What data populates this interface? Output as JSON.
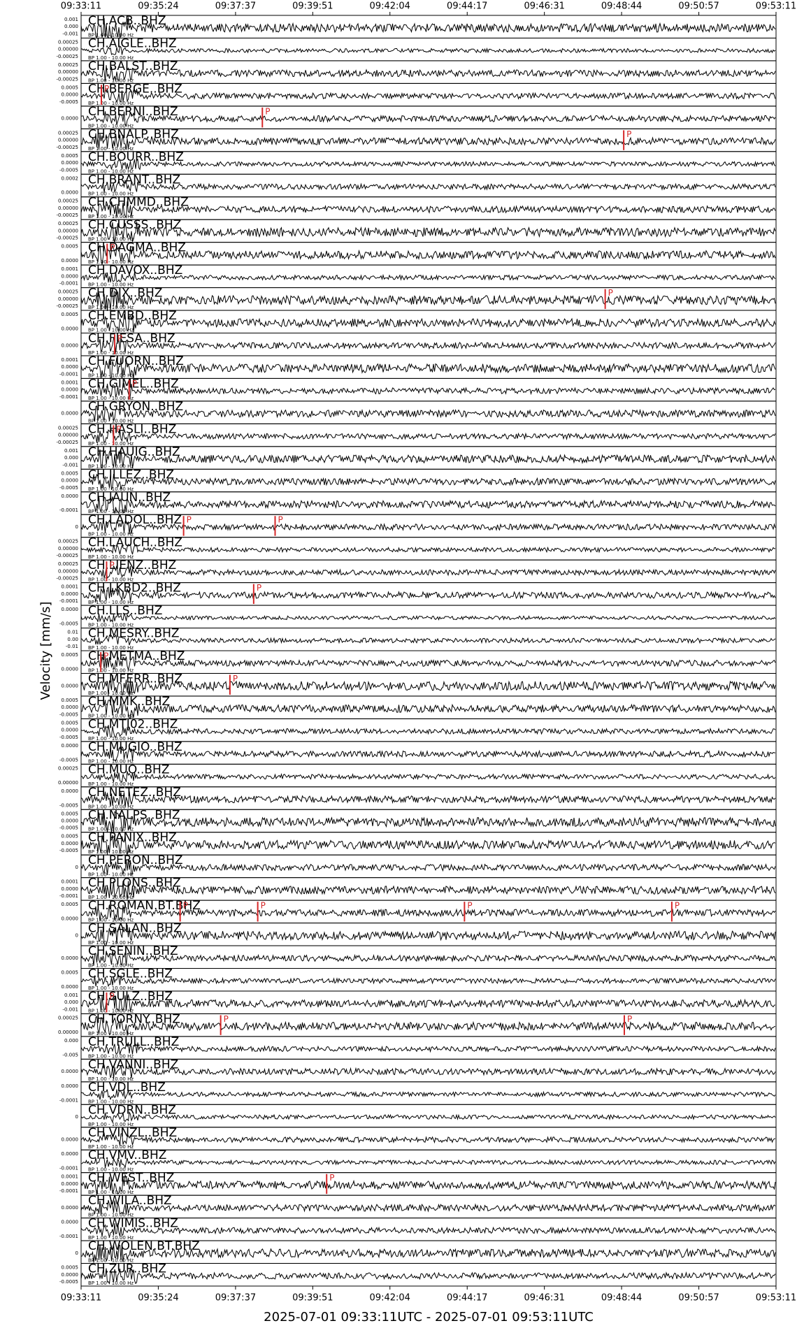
{
  "chart_data": {
    "type": "seismogram",
    "xlabel": "2025-07-01 09:33:11UTC - 2025-07-01 09:53:11UTC",
    "ylabel": "Velocity [mm/s]",
    "filter": "BP 1.00 - 10.00 Hz",
    "xlim": [
      0,
      1200
    ],
    "xticks": [
      {
        "value": 0,
        "label": "09:33:11"
      },
      {
        "value": 133.3,
        "label": "09:35:24"
      },
      {
        "value": 266.7,
        "label": "09:37:37"
      },
      {
        "value": 400,
        "label": "09:39:51"
      },
      {
        "value": 533.3,
        "label": "09:42:04"
      },
      {
        "value": 666.7,
        "label": "09:44:17"
      },
      {
        "value": 800,
        "label": "09:46:31"
      },
      {
        "value": 933.3,
        "label": "09:48:44"
      },
      {
        "value": 1066.7,
        "label": "09:50:57"
      },
      {
        "value": 1200,
        "label": "09:53:11"
      }
    ],
    "pick_color": "#d62728",
    "traces": [
      {
        "name": "CH.ACB..BHZ",
        "yticks": [
          "0.001",
          "0.000",
          "-0.001"
        ],
        "picks": []
      },
      {
        "name": "CH.AIGLE..BHZ",
        "yticks": [
          "0.00025",
          "0.00000",
          "-0.00025"
        ],
        "picks": []
      },
      {
        "name": "CH.BALST..BHZ",
        "yticks": [
          "0.00025",
          "0.00000",
          "-0.00025"
        ],
        "picks": []
      },
      {
        "name": "CH.BERGE..BHZ",
        "yticks": [
          "0.0005",
          "0.0000",
          "-0.0005"
        ],
        "picks": [
          {
            "time": 35,
            "phase": "P"
          }
        ]
      },
      {
        "name": "CH.BERNI..BHZ",
        "yticks": [
          "0.0000"
        ],
        "picks": [
          {
            "time": 313,
            "phase": "P"
          }
        ]
      },
      {
        "name": "CH.BNALP..BHZ",
        "yticks": [
          "0.00025",
          "0.00000",
          "-0.00025"
        ],
        "picks": [
          {
            "time": 937,
            "phase": "P"
          }
        ]
      },
      {
        "name": "CH.BOURR..BHZ",
        "yticks": [
          "0.0005",
          "0.0000",
          "-0.0005"
        ],
        "picks": []
      },
      {
        "name": "CH.BRANT..BHZ",
        "yticks": [
          "0.0002",
          "0.0000"
        ],
        "picks": []
      },
      {
        "name": "CH.CHMMD..BHZ",
        "yticks": [
          "0.00025",
          "0.00000",
          "-0.00025"
        ],
        "picks": []
      },
      {
        "name": "CH.CUSSS..BHZ",
        "yticks": [
          "0.00025",
          "0.00000",
          "-0.00025"
        ],
        "picks": []
      },
      {
        "name": "CH.DAGMA..BHZ",
        "yticks": [
          "0.0005",
          "0.0000"
        ],
        "picks": [
          {
            "time": 45,
            "phase": "P"
          }
        ]
      },
      {
        "name": "CH.DAVOX..BHZ",
        "yticks": [
          "0.0001",
          "0.0000",
          "-0.0001"
        ],
        "picks": []
      },
      {
        "name": "CH.DIX..BHZ",
        "yticks": [
          "0.00025",
          "0.00000",
          "-0.00025"
        ],
        "picks": [
          {
            "time": 905,
            "phase": "P"
          }
        ]
      },
      {
        "name": "CH.EMBD..BHZ",
        "yticks": [
          "0.0005",
          "0.0000"
        ],
        "picks": []
      },
      {
        "name": "CH.FIESA..BHZ",
        "yticks": [
          "0.0000"
        ],
        "picks": [
          {
            "time": 58,
            "phase": "P"
          }
        ]
      },
      {
        "name": "CH.FUORN..BHZ",
        "yticks": [
          "0.0001",
          "0.0000",
          "-0.0001"
        ],
        "picks": []
      },
      {
        "name": "CH.GIMEL..BHZ",
        "yticks": [
          "0.0001",
          "0.0000",
          "-0.0001"
        ],
        "picks": [
          {
            "time": 83,
            "phase": "P"
          }
        ]
      },
      {
        "name": "CH.GRYON..BHZ",
        "yticks": [
          "0.0000"
        ],
        "picks": []
      },
      {
        "name": "CH.HASLI..BHZ",
        "yticks": [
          "0.00025",
          "0.00000",
          "-0.00025"
        ],
        "picks": [
          {
            "time": 56,
            "phase": "P"
          }
        ]
      },
      {
        "name": "CH.HAUIG..BHZ",
        "yticks": [
          "0.001",
          "0.000",
          "-0.001"
        ],
        "picks": []
      },
      {
        "name": "CH.ILLEZ..BHZ",
        "yticks": [
          "0.0005",
          "0.0000",
          "-0.0005"
        ],
        "picks": []
      },
      {
        "name": "CH.JAUN..BHZ",
        "yticks": [
          "0.0000",
          "-0.0001"
        ],
        "picks": []
      },
      {
        "name": "CH.LADOL..BHZ",
        "yticks": [
          "0"
        ],
        "picks": [
          {
            "time": 177,
            "phase": "P"
          },
          {
            "time": 335,
            "phase": "P"
          }
        ]
      },
      {
        "name": "CH.LAUCH..BHZ",
        "yticks": [
          "0.00025",
          "0.00000",
          "-0.00025"
        ],
        "picks": []
      },
      {
        "name": "CH.LIENZ..BHZ",
        "yticks": [
          "0.00025",
          "0.00000",
          "-0.00025"
        ],
        "picks": [
          {
            "time": 44,
            "phase": "P"
          }
        ]
      },
      {
        "name": "CH.LKBD2..BHZ",
        "yticks": [
          "0.0001",
          "0.0000",
          "-0.0001"
        ],
        "picks": [
          {
            "time": 298,
            "phase": "P"
          }
        ]
      },
      {
        "name": "CH.LLS..BHZ",
        "yticks": [
          "0.0000",
          "-0.0005"
        ],
        "picks": []
      },
      {
        "name": "CH.MESRY..BHZ",
        "yticks": [
          "0.01",
          "0.00",
          "-0.01"
        ],
        "picks": []
      },
      {
        "name": "CH.METMA..BHZ",
        "yticks": [
          "0.0005",
          "0.0000"
        ],
        "picks": [
          {
            "time": 34,
            "phase": "P"
          }
        ]
      },
      {
        "name": "CH.MFERR..BHZ",
        "yticks": [
          "0.0000"
        ],
        "picks": [
          {
            "time": 257,
            "phase": "P"
          }
        ]
      },
      {
        "name": "CH.MMK..BHZ",
        "yticks": [
          "0.0005",
          "0.0000",
          "-0.0005"
        ],
        "picks": []
      },
      {
        "name": "CH.MTI02..BHZ",
        "yticks": [
          "0.0005",
          "0.0000",
          "-0.0005"
        ],
        "picks": []
      },
      {
        "name": "CH.MUGIO..BHZ",
        "yticks": [
          "0.0000",
          "-0.0005"
        ],
        "picks": []
      },
      {
        "name": "CH.MUO..BHZ",
        "yticks": [
          "0.00025",
          "0.00000"
        ],
        "picks": []
      },
      {
        "name": "CH.NETEZ..BHZ",
        "yticks": [
          "0.0000",
          "-0.0005"
        ],
        "picks": []
      },
      {
        "name": "CH.NALPS..BHZ",
        "yticks": [
          "0.0005",
          "0.0000",
          "-0.0005"
        ],
        "picks": []
      },
      {
        "name": "CH.PANIX..BHZ",
        "yticks": [
          "0.0005",
          "0.0000",
          "-0.0005"
        ],
        "picks": []
      },
      {
        "name": "CH.PERON..BHZ",
        "yticks": [
          "0"
        ],
        "picks": []
      },
      {
        "name": "CH.PLONS..BHZ",
        "yticks": [
          "0.0001",
          "0.0000",
          "-0.0001"
        ],
        "picks": []
      },
      {
        "name": "CH.ROMAN.BT.BHZ",
        "yticks": [
          "0.0005",
          "0.0000"
        ],
        "picks": [
          {
            "time": 171,
            "phase": "P"
          },
          {
            "time": 305,
            "phase": "P"
          },
          {
            "time": 662,
            "phase": "P"
          },
          {
            "time": 1020,
            "phase": "P"
          }
        ]
      },
      {
        "name": "CH.SALAN..BHZ",
        "yticks": [
          "0"
        ],
        "picks": []
      },
      {
        "name": "CH.SENIN..BHZ",
        "yticks": [
          "0.0000"
        ],
        "picks": []
      },
      {
        "name": "CH.SGLE..BHZ",
        "yticks": [
          "0.0005",
          "0.0000"
        ],
        "picks": []
      },
      {
        "name": "CH.SULZ..BHZ",
        "yticks": [
          "0.001",
          "0.000",
          "-0.001"
        ],
        "picks": [
          {
            "time": 44,
            "phase": "P"
          }
        ]
      },
      {
        "name": "CH.TORNY..BHZ",
        "yticks": [
          "0.00025",
          "0.00000"
        ],
        "picks": [
          {
            "time": 241,
            "phase": "P"
          },
          {
            "time": 938,
            "phase": "P"
          }
        ]
      },
      {
        "name": "CH.TRULL..BHZ",
        "yticks": [
          "0.000",
          "-0.005"
        ],
        "picks": []
      },
      {
        "name": "CH.VANNI..BHZ",
        "yticks": [
          "0.0000"
        ],
        "picks": []
      },
      {
        "name": "CH.VDL..BHZ",
        "yticks": [
          "0.0000",
          "-0.0001"
        ],
        "picks": []
      },
      {
        "name": "CH.VDRN..BHZ",
        "yticks": [
          "0"
        ],
        "picks": []
      },
      {
        "name": "CH.VINZL..BHZ",
        "yticks": [
          "0.0000"
        ],
        "picks": []
      },
      {
        "name": "CH.VMV..BHZ",
        "yticks": [
          "0.0000",
          "-0.0001"
        ],
        "picks": []
      },
      {
        "name": "CH.WEST..BHZ",
        "yticks": [
          "0.0001",
          "0.0000",
          "-0.0001"
        ],
        "picks": [
          {
            "time": 424,
            "phase": "P"
          }
        ]
      },
      {
        "name": "CH.WILA..BHZ",
        "yticks": [
          "0.0000"
        ],
        "picks": []
      },
      {
        "name": "CH.WIMIS..BHZ",
        "yticks": [
          "0.0000",
          "-0.0001"
        ],
        "picks": []
      },
      {
        "name": "CH.WOLEN.BT.BHZ",
        "yticks": [
          "0"
        ],
        "picks": []
      },
      {
        "name": "CH.ZUR..BHZ",
        "yticks": [
          "0.0005",
          "0.0000",
          "-0.0005"
        ],
        "picks": []
      }
    ]
  }
}
